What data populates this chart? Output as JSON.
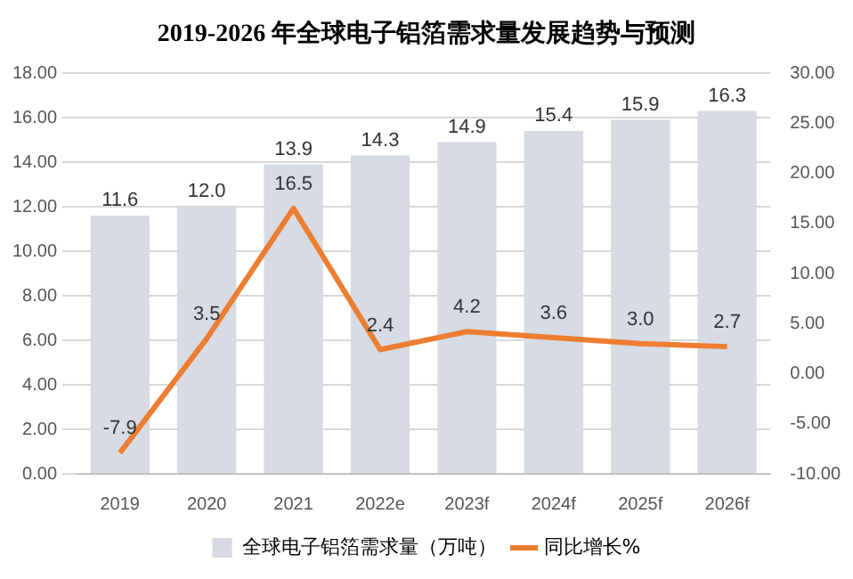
{
  "chart_data": {
    "type": "bar",
    "title": "2019-2026 年全球电子铝箔需求量发展趋势与预测",
    "categories": [
      "2019",
      "2020",
      "2021",
      "2022e",
      "2023f",
      "2024f",
      "2025f",
      "2026f"
    ],
    "series": [
      {
        "name": "全球电子铝箔需求量（万吨）",
        "color": "#d6dbe4",
        "values": [
          11.6,
          12.0,
          13.9,
          14.3,
          14.9,
          15.4,
          15.9,
          16.3
        ],
        "value_labels": [
          "11.6",
          "12.0",
          "13.9",
          "14.3",
          "14.9",
          "15.4",
          "15.9",
          "16.3"
        ]
      },
      {
        "name": "同比增长%",
        "type": "line",
        "axis": "y2",
        "color": "#ed7d31",
        "values": [
          -7.9,
          3.5,
          16.5,
          2.4,
          4.2,
          3.6,
          3.0,
          2.7
        ],
        "value_labels": [
          "-7.9",
          "3.5",
          "16.5",
          "2.4",
          "4.2",
          "3.6",
          "3.0",
          "2.7"
        ]
      }
    ],
    "ylim": [
      0,
      18
    ],
    "yticks": [
      {
        "value": 0,
        "label": "0.00"
      },
      {
        "value": 2,
        "label": "2.00"
      },
      {
        "value": 4,
        "label": "4.00"
      },
      {
        "value": 6,
        "label": "6.00"
      },
      {
        "value": 8,
        "label": "8.00"
      },
      {
        "value": 10,
        "label": "10.00"
      },
      {
        "value": 12,
        "label": "12.00"
      },
      {
        "value": 14,
        "label": "14.00"
      },
      {
        "value": 16,
        "label": "16.00"
      },
      {
        "value": 18,
        "label": "18.00"
      }
    ],
    "y2lim": [
      -10,
      30
    ],
    "y2ticks": [
      {
        "value": -10,
        "label": "-10.00"
      },
      {
        "value": -5,
        "label": "-5.00"
      },
      {
        "value": 0,
        "label": "0.00"
      },
      {
        "value": 5,
        "label": "5.00"
      },
      {
        "value": 10,
        "label": "10.00"
      },
      {
        "value": 15,
        "label": "15.00"
      },
      {
        "value": 20,
        "label": "20.00"
      },
      {
        "value": 25,
        "label": "25.00"
      },
      {
        "value": 30,
        "label": "30.00"
      }
    ],
    "grid": "y",
    "legend": "bottom",
    "marker": "none"
  }
}
